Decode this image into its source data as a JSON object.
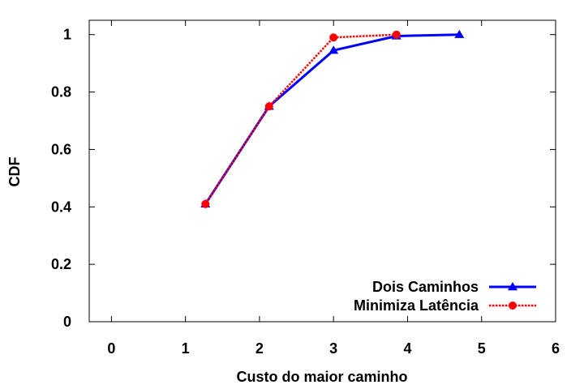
{
  "chart_data": {
    "type": "line",
    "title": "",
    "xlabel": "Custo do maior caminho",
    "ylabel": "CDF",
    "xlim": [
      -0.3,
      6
    ],
    "ylim": [
      0,
      1.05
    ],
    "xticks": [
      0,
      1,
      2,
      3,
      4,
      5,
      6
    ],
    "xtick_labels": [
      "0",
      "1",
      "2",
      "3",
      "4",
      "5",
      "6"
    ],
    "yticks": [
      0,
      0.2,
      0.4,
      0.6,
      0.8,
      1
    ],
    "ytick_labels": [
      "0",
      "0.2",
      "0.4",
      "0.6",
      "0.8",
      "1"
    ],
    "grid": false,
    "legend_position": "bottom-right",
    "series": [
      {
        "name": "Dois Caminhos",
        "color": "#0000ff",
        "marker": "triangle",
        "line_style": "solid",
        "x": [
          1.27,
          2.13,
          3.0,
          3.85,
          4.7
        ],
        "y": [
          0.41,
          0.75,
          0.945,
          0.995,
          1.0
        ]
      },
      {
        "name": "Minimiza Latência",
        "color": "#ff0000",
        "marker": "circle",
        "line_style": "dotted",
        "x": [
          1.27,
          2.13,
          3.0,
          3.85
        ],
        "y": [
          0.41,
          0.75,
          0.99,
          1.0
        ]
      }
    ]
  }
}
